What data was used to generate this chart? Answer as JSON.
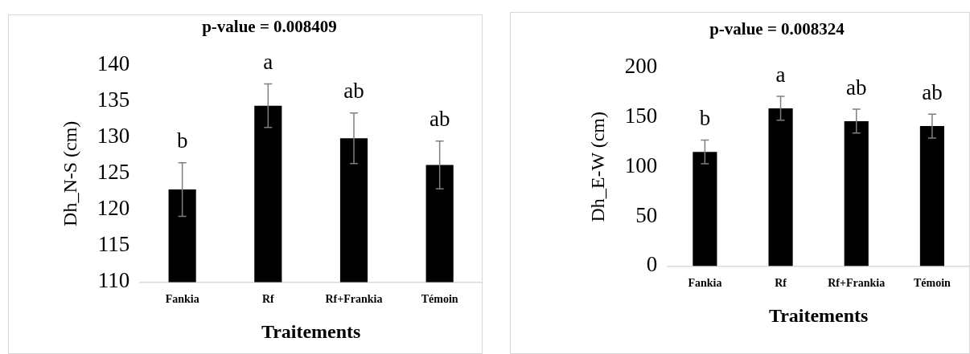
{
  "chart_data": [
    {
      "type": "bar",
      "title": "p-value = 0.008409",
      "xlabel": "Traitements",
      "ylabel": "Dh_N-S (cm)",
      "categories": [
        "Fankia",
        "Rf",
        "Rf+Frankia",
        "Témoin"
      ],
      "values": [
        122.8,
        134.4,
        129.9,
        126.2
      ],
      "errors": [
        3.7,
        3.0,
        3.5,
        3.3
      ],
      "color": "#000000",
      "ylim": [
        110,
        140
      ],
      "yticks": [
        110,
        115,
        120,
        125,
        130,
        135,
        140
      ],
      "grid": false,
      "legend": false,
      "annotations": [
        "b",
        "a",
        "ab",
        "ab"
      ]
    },
    {
      "type": "bar",
      "title": "p-value = 0.008324",
      "xlabel": "Traitements",
      "ylabel": "Dh_E-W (cm)",
      "categories": [
        "Fankia",
        "Rf",
        "Rf+Frankia",
        "Témoin"
      ],
      "values": [
        115,
        159,
        146,
        141
      ],
      "errors": [
        12,
        12,
        12,
        12
      ],
      "color": "#000000",
      "ylim": [
        0,
        200
      ],
      "yticks": [
        0,
        50,
        100,
        150,
        200
      ],
      "grid": false,
      "legend": false,
      "annotations": [
        "b",
        "a",
        "ab",
        "ab"
      ]
    }
  ]
}
